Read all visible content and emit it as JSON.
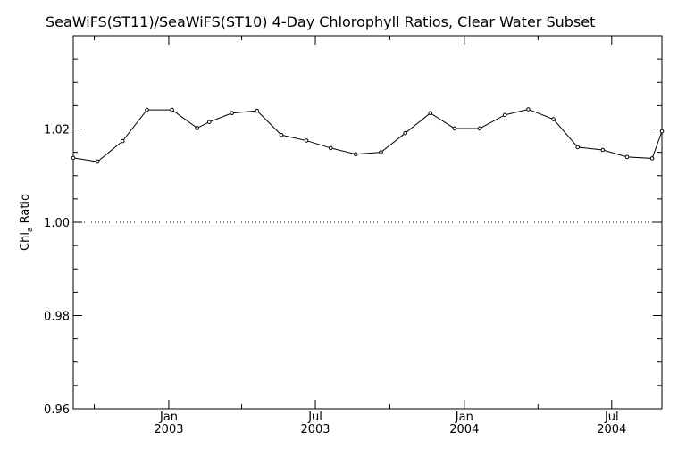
{
  "chart_data": {
    "type": "line",
    "title": "SeaWiFS(ST11)/SeaWiFS(ST10) 4-Day Chlorophyll Ratios, Clear Water Subset",
    "xlabel": "",
    "ylabel": "Chl",
    "ylabel_subscript": "a",
    "ylabel_suffix": " Ratio",
    "ylim": [
      0.96,
      1.04
    ],
    "xlim": [
      "2002-09-05",
      "2004-09-01"
    ],
    "grid": false,
    "reference_line": {
      "y": 1.0,
      "style": "dotted"
    },
    "yticks": [
      {
        "value": 0.96,
        "label": "0.96"
      },
      {
        "value": 0.98,
        "label": "0.98"
      },
      {
        "value": 1.0,
        "label": "1.00"
      },
      {
        "value": 1.02,
        "label": "1.02"
      }
    ],
    "xticks": [
      {
        "date": "2003-01-01",
        "month": "Jan",
        "year": "2003"
      },
      {
        "date": "2003-07-01",
        "month": "Jul",
        "year": "2003"
      },
      {
        "date": "2004-01-01",
        "month": "Jan",
        "year": "2004"
      },
      {
        "date": "2004-07-01",
        "month": "Jul",
        "year": "2004"
      }
    ],
    "series": [
      {
        "x": [
          "2002-09-05",
          "2002-10-05",
          "2002-11-05",
          "2002-12-05",
          "2003-01-05",
          "2003-02-05",
          "2003-02-20",
          "2003-03-20",
          "2003-04-20",
          "2003-05-20",
          "2003-06-20",
          "2003-07-20",
          "2003-08-20",
          "2003-09-20",
          "2003-10-20",
          "2003-11-20",
          "2003-12-20",
          "2004-01-20",
          "2004-02-20",
          "2004-03-20",
          "2004-04-20",
          "2004-05-20",
          "2004-06-20",
          "2004-07-20",
          "2004-08-20",
          "2004-09-01"
        ],
        "y": [
          1.0138,
          1.013,
          1.0174,
          1.0241,
          1.0241,
          1.0202,
          1.0215,
          1.0234,
          1.0239,
          1.0187,
          1.0175,
          1.0159,
          1.0146,
          1.015,
          1.0191,
          1.0234,
          1.0201,
          1.0201,
          1.023,
          1.0242,
          1.0221,
          1.0161,
          1.0155,
          1.014,
          1.0137,
          1.0195
        ]
      }
    ]
  }
}
